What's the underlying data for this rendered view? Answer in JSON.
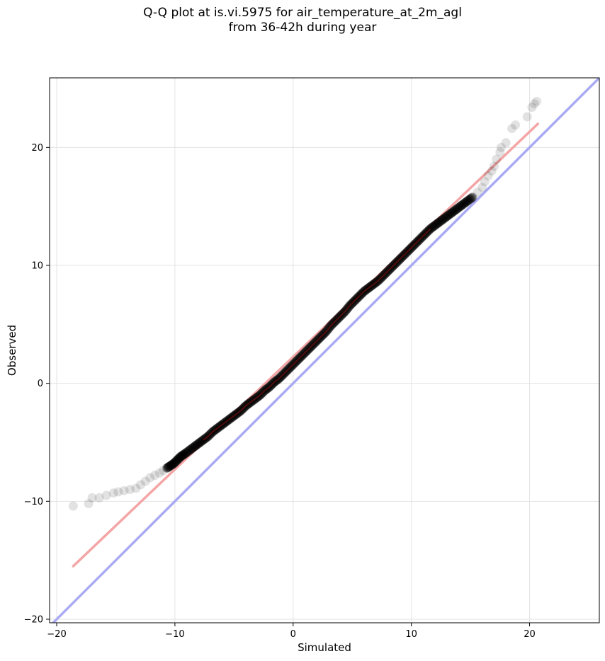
{
  "chart_data": {
    "type": "scatter",
    "title": "Q-Q plot at is.vi.5975 for air_temperature_at_2m_agl",
    "subtitle": "from 36-42h during year",
    "xlabel": "Simulated",
    "ylabel": "Observed",
    "xlim": [
      -20.6,
      25.9
    ],
    "ylim": [
      -20.3,
      25.9
    ],
    "x_ticks": [
      -20,
      -10,
      0,
      10,
      20
    ],
    "y_ticks": [
      -20,
      -10,
      0,
      10,
      20
    ],
    "x_tick_labels": [
      "−20",
      "−10",
      "0",
      "10",
      "20"
    ],
    "y_tick_labels": [
      "−20",
      "−10",
      "0",
      "10",
      "20"
    ],
    "grid": true,
    "quantile_points": [
      [
        -18.6,
        -10.4
      ],
      [
        -17.3,
        -10.2
      ],
      [
        -17.0,
        -9.7
      ],
      [
        -16.4,
        -9.7
      ],
      [
        -15.8,
        -9.5
      ],
      [
        -15.2,
        -9.3
      ],
      [
        -14.8,
        -9.2
      ],
      [
        -14.3,
        -9.1
      ],
      [
        -13.8,
        -9.0
      ],
      [
        -13.3,
        -8.9
      ],
      [
        -12.9,
        -8.6
      ],
      [
        -12.5,
        -8.3
      ],
      [
        -12.1,
        -8.0
      ],
      [
        -11.7,
        -7.8
      ],
      [
        -11.3,
        -7.6
      ],
      [
        -11.0,
        -7.4
      ],
      [
        -10.7,
        -7.2
      ],
      [
        -10.4,
        -7.0
      ],
      [
        -10.1,
        -6.8
      ],
      [
        -9.8,
        -6.5
      ],
      [
        -9.5,
        -6.2
      ],
      [
        -9.2,
        -6.0
      ],
      [
        -8.8,
        -5.7
      ],
      [
        -8.4,
        -5.4
      ],
      [
        -8.0,
        -5.1
      ],
      [
        -7.6,
        -4.8
      ],
      [
        -7.2,
        -4.5
      ],
      [
        -6.8,
        -4.1
      ],
      [
        -6.4,
        -3.8
      ],
      [
        -6.0,
        -3.5
      ],
      [
        -5.6,
        -3.2
      ],
      [
        -5.2,
        -2.9
      ],
      [
        -4.8,
        -2.6
      ],
      [
        -4.4,
        -2.3
      ],
      [
        -4.0,
        -1.9
      ],
      [
        -3.6,
        -1.6
      ],
      [
        -3.2,
        -1.3
      ],
      [
        -2.8,
        -1.0
      ],
      [
        -2.4,
        -0.6
      ],
      [
        -2.0,
        -0.3
      ],
      [
        -1.6,
        0.1
      ],
      [
        -1.2,
        0.4
      ],
      [
        -0.8,
        0.8
      ],
      [
        -0.4,
        1.2
      ],
      [
        0.0,
        1.6
      ],
      [
        0.4,
        2.0
      ],
      [
        0.8,
        2.4
      ],
      [
        1.2,
        2.8
      ],
      [
        1.6,
        3.2
      ],
      [
        2.0,
        3.6
      ],
      [
        2.4,
        4.0
      ],
      [
        2.8,
        4.4
      ],
      [
        3.2,
        4.9
      ],
      [
        3.6,
        5.3
      ],
      [
        4.0,
        5.7
      ],
      [
        4.4,
        6.1
      ],
      [
        4.8,
        6.6
      ],
      [
        5.2,
        7.0
      ],
      [
        5.6,
        7.4
      ],
      [
        6.0,
        7.8
      ],
      [
        6.4,
        8.1
      ],
      [
        6.8,
        8.4
      ],
      [
        7.2,
        8.7
      ],
      [
        7.6,
        9.1
      ],
      [
        8.0,
        9.5
      ],
      [
        8.4,
        9.9
      ],
      [
        8.8,
        10.3
      ],
      [
        9.2,
        10.7
      ],
      [
        9.6,
        11.1
      ],
      [
        10.0,
        11.5
      ],
      [
        10.4,
        11.9
      ],
      [
        10.8,
        12.3
      ],
      [
        11.2,
        12.7
      ],
      [
        11.6,
        13.1
      ],
      [
        12.0,
        13.4
      ],
      [
        12.4,
        13.7
      ],
      [
        12.8,
        14.0
      ],
      [
        13.2,
        14.3
      ],
      [
        13.6,
        14.6
      ],
      [
        14.0,
        14.9
      ],
      [
        14.4,
        15.2
      ],
      [
        14.8,
        15.5
      ],
      [
        15.2,
        15.8
      ],
      [
        15.6,
        16.2
      ],
      [
        16.0,
        16.6
      ],
      [
        16.2,
        17.1
      ],
      [
        16.5,
        17.6
      ],
      [
        16.8,
        18.0
      ],
      [
        17.0,
        18.4
      ],
      [
        17.2,
        19.0
      ],
      [
        17.5,
        19.6
      ],
      [
        17.6,
        20.0
      ],
      [
        18.0,
        20.4
      ],
      [
        18.5,
        21.6
      ],
      [
        18.8,
        21.9
      ],
      [
        19.8,
        22.6
      ],
      [
        20.2,
        23.4
      ],
      [
        20.4,
        23.7
      ],
      [
        20.6,
        23.9
      ]
    ],
    "reference_lines": [
      {
        "type": "fit",
        "color": "#f4a5a5",
        "x": [
          -18.6,
          20.7
        ],
        "y": [
          -15.5,
          22.0
        ]
      },
      {
        "type": "identity",
        "color": "#aaaaf4",
        "x": [
          -20.6,
          25.9
        ],
        "y": [
          -20.6,
          25.9
        ]
      }
    ],
    "point_color": "#000000",
    "point_opacity": 0.07
  }
}
